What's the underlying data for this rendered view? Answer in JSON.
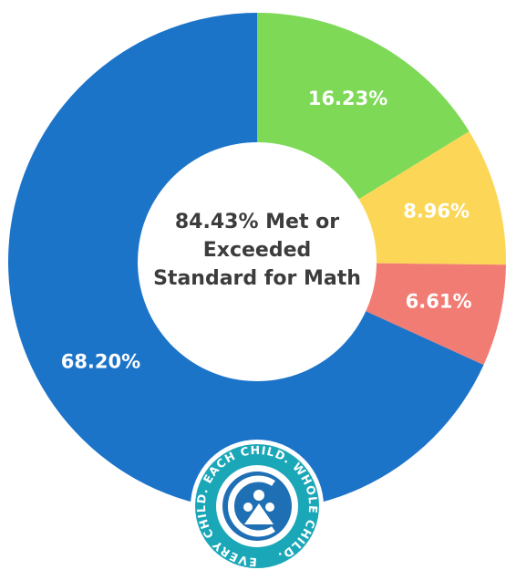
{
  "chart_data": {
    "type": "donut",
    "categories": [
      null,
      null,
      null,
      null
    ],
    "values": [
      16.23,
      8.96,
      6.61,
      68.2
    ],
    "value_labels": [
      "16.23%",
      "8.96%",
      "6.61%",
      "68.20%"
    ],
    "colors": [
      "#7ed957",
      "#fcd757",
      "#f17c73",
      "#1c74c9"
    ],
    "center_text": [
      "84.43% Met or",
      "Exceeded",
      "Standard for Math"
    ]
  },
  "logo": {
    "ring_text": "EVERY CHILD. EACH CHILD. WHOLE CHILD."
  }
}
